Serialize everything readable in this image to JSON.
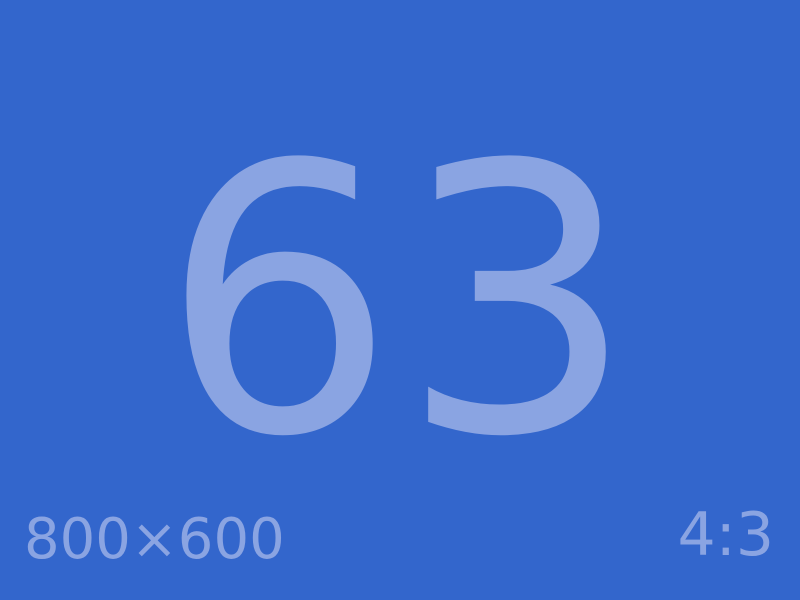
{
  "screen": {
    "number": "63",
    "dimensions": "800×600",
    "ratio": "4:3"
  },
  "colors": {
    "background": "#3366cc",
    "text": "#8aa4e2"
  }
}
